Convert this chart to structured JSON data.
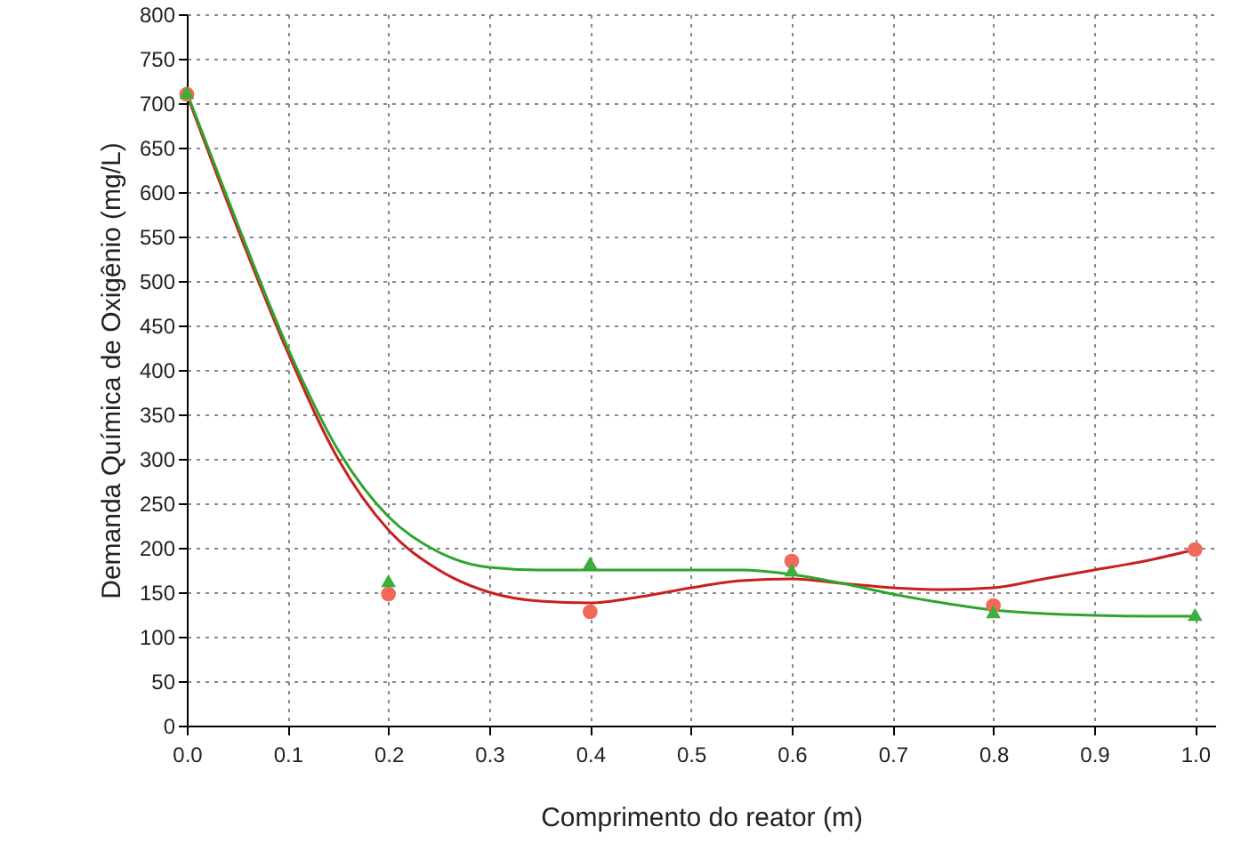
{
  "chart_data": {
    "type": "scatter",
    "xlabel": "Comprimento do reator (m)",
    "ylabel": "Demanda Química de Oxigênio (mg/L)",
    "xlim": [
      0,
      1.02
    ],
    "ylim": [
      0,
      800
    ],
    "xticks": [
      {
        "value": 0,
        "label": "0.0"
      },
      0.1,
      0.2,
      0.3,
      0.4,
      0.5,
      0.6,
      0.7,
      0.8,
      0.9,
      {
        "value": 1,
        "label": "1.0"
      }
    ],
    "yticks": [
      0,
      50,
      100,
      150,
      200,
      250,
      300,
      350,
      400,
      450,
      500,
      550,
      600,
      650,
      700,
      750,
      800
    ],
    "grid": true,
    "series": [
      {
        "type": "line",
        "color": "#c8201e",
        "marker": "none",
        "x": [
          0,
          0.05,
          0.1,
          0.15,
          0.2,
          0.25,
          0.3,
          0.35,
          0.4,
          0.45,
          0.5,
          0.55,
          0.6,
          0.65,
          0.7,
          0.75,
          0.8,
          0.85,
          0.9,
          0.95,
          1.0
        ],
        "values": [
          710,
          560,
          420,
          300,
          220,
          175,
          150,
          140,
          138,
          145,
          155,
          163,
          165,
          160,
          155,
          153,
          155,
          165,
          175,
          185,
          198
        ]
      },
      {
        "type": "line",
        "color": "#2ea42e",
        "marker": "none",
        "x": [
          0,
          0.05,
          0.1,
          0.15,
          0.2,
          0.25,
          0.3,
          0.35,
          0.4,
          0.45,
          0.5,
          0.55,
          0.6,
          0.65,
          0.7,
          0.75,
          0.8,
          0.85,
          0.9,
          0.95,
          1.0
        ],
        "values": [
          712,
          565,
          425,
          310,
          235,
          195,
          178,
          175,
          175,
          175,
          175,
          175,
          170,
          160,
          148,
          138,
          130,
          126,
          124,
          123,
          123
        ]
      },
      {
        "color": "#f06a5c",
        "marker": "circle",
        "x": [
          0,
          0.2,
          0.4,
          0.6,
          0.8,
          1.0
        ],
        "values": [
          710,
          148,
          128,
          185,
          135,
          198
        ]
      },
      {
        "color": "#3cae3c",
        "marker": "triangle",
        "x": [
          0,
          0.2,
          0.4,
          0.6,
          0.8,
          1.0
        ],
        "values": [
          712,
          163,
          183,
          175,
          128,
          125
        ]
      }
    ]
  }
}
